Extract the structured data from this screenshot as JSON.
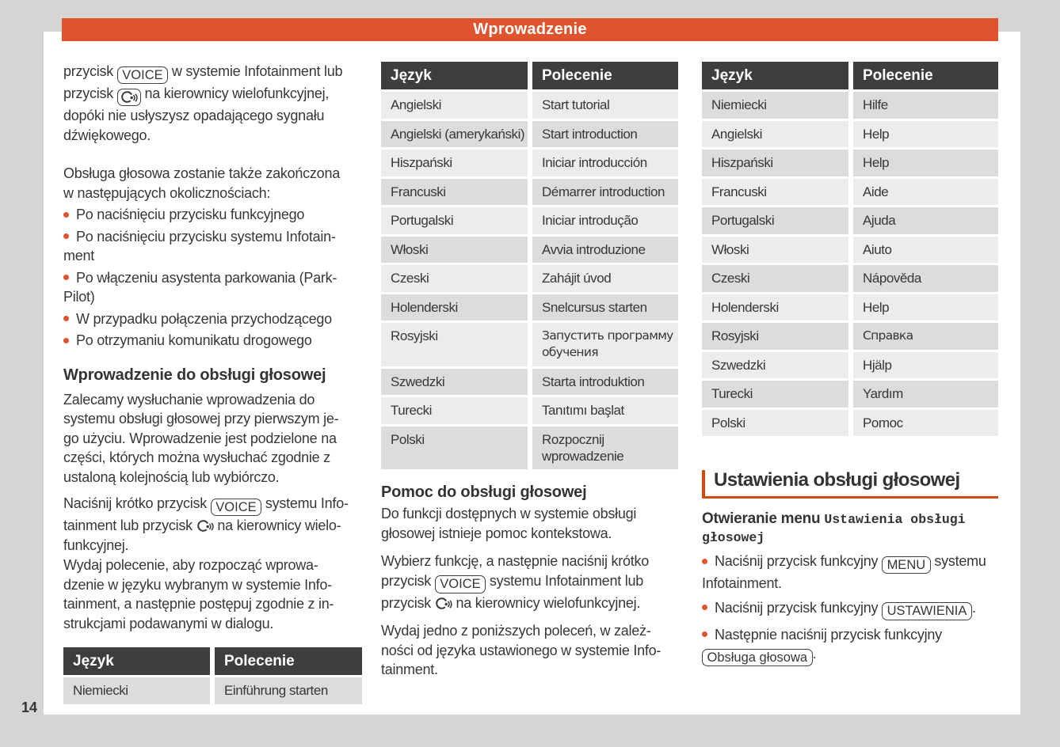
{
  "page_number": "14",
  "header": {
    "title": "Wprowadzenie"
  },
  "colors": {
    "accent_orange": "#e0542d",
    "section_rule_orange": "#cf4c12",
    "table_header_bg": "#3e3e3e",
    "row_light": "#ececec",
    "row_dark": "#dcdcdc",
    "page_background": "#d5d5d3",
    "text": "#373737"
  },
  "table_headers": [
    "Język",
    "Polecenie"
  ],
  "left_column": {
    "blocks": [
      {
        "type": "p",
        "name": "intro-paragraph",
        "cls": "first-para",
        "lines": [
          [
            "przycisk ",
            {
              "key": "VOICE"
            },
            " w systemie Infotainment lub"
          ],
          [
            "przycisk ",
            {
              "key_icon": "voice-control-icon"
            },
            " na kierownicy wielofunkcyjnej,"
          ],
          [
            "dopóki nie usłyszysz opadającego sygnału"
          ],
          [
            "dźwiękowego."
          ]
        ]
      },
      {
        "type": "p",
        "name": "end-conditions-paragraph",
        "cls": "tight",
        "lines": [
          [
            "Obsługa głosowa zostanie także zakończona"
          ],
          [
            "w następujących okolicznościach:"
          ]
        ]
      },
      {
        "type": "bullets",
        "name": "end-conditions-list",
        "items": [
          {
            "lines": [
              [
                "Po naciśnięciu przycisku funkcyjnego"
              ]
            ]
          },
          {
            "lines": [
              [
                "Po naciśnięciu przycisku systemu Infotain-"
              ],
              [
                "ment"
              ]
            ]
          },
          {
            "lines": [
              [
                "Po włączeniu asystenta parkowania (Park-"
              ],
              [
                "Pilot)"
              ]
            ]
          },
          {
            "lines": [
              [
                "W przypadku połączenia przychodzącego"
              ]
            ]
          },
          {
            "lines": [
              [
                "Po otrzymaniu komunikatu drogowego"
              ]
            ]
          }
        ]
      },
      {
        "type": "h3",
        "name": "intro-voice-heading",
        "text": "Wprowadzenie do obsługi głosowej"
      },
      {
        "type": "p",
        "name": "intro-voice-paragraph",
        "cls": "mb12",
        "lines": [
          [
            "Zalecamy wysłuchanie wprowadzenia do"
          ],
          [
            "systemu obsługi głosowej przy pierwszym je-"
          ],
          [
            "go użyciu. Wprowadzenie jest podzielone na"
          ],
          [
            "części, których można wysłuchać zgodnie z"
          ],
          [
            "ustaloną kolejnością lub wybiórczo."
          ]
        ]
      },
      {
        "type": "p",
        "name": "press-voice-paragraph",
        "cls": "mb1",
        "lines": [
          [
            "Naciśnij krótko przycisk ",
            {
              "key": "VOICE"
            },
            " systemu Info-"
          ],
          [
            "tainment lub przycisk ",
            {
              "icon": "voice-control-icon"
            },
            " na kierownicy wielo-"
          ],
          [
            "funkcyjnej."
          ]
        ]
      },
      {
        "type": "p",
        "name": "command-paragraph",
        "cls": "mb0",
        "lines": [
          [
            "Wydaj polecenie, aby rozpocząć wprowa-"
          ],
          [
            "dzenie w języku wybranym w systemie Info-"
          ],
          [
            "tainment, a następnie postępuj zgodnie z in-"
          ],
          [
            "strukcjami podawanymi w dialogu."
          ]
        ]
      },
      {
        "type": "table",
        "name": "german-intro-command-table",
        "cls": "left-table",
        "rows": [
          {
            "language": "Niemiecki",
            "command": "Einführung starten",
            "shade": "dark"
          }
        ]
      }
    ]
  },
  "middle_column": {
    "blocks": [
      {
        "type": "table",
        "name": "intro-command-table",
        "cls": "table-top",
        "rows": [
          {
            "language": "Angielski",
            "command": "Start tutorial",
            "shade": "light"
          },
          {
            "language": "Angielski (amerykański)",
            "command": "Start introduction",
            "shade": "dark"
          },
          {
            "language": "Hiszpański",
            "command": "Iniciar introducción",
            "shade": "light"
          },
          {
            "language": "Francuski",
            "command": "Démarrer introduction",
            "shade": "dark"
          },
          {
            "language": "Portugalski",
            "command": "Iniciar introdução",
            "shade": "light"
          },
          {
            "language": "Włoski",
            "command": "Avvia introduzione",
            "shade": "dark"
          },
          {
            "language": "Czeski",
            "command": "Zahájit úvod",
            "shade": "light"
          },
          {
            "language": "Holenderski",
            "command": "Snelcursus starten",
            "shade": "dark"
          },
          {
            "language": "Rosyjski",
            "command": "Запустить программу\nобучения",
            "shade": "light"
          },
          {
            "language": "Szwedzki",
            "command": "Starta introduktion",
            "shade": "dark"
          },
          {
            "language": "Turecki",
            "command": "Tanıtımı başlat",
            "shade": "light"
          },
          {
            "language": "Polski",
            "command": "Rozpocznij\nwprowadzenie",
            "shade": "dark"
          }
        ]
      },
      {
        "type": "h3",
        "name": "help-voice-heading",
        "text": "Pomoc do obsługi głosowej"
      },
      {
        "type": "p",
        "name": "help-paragraph",
        "lines": [
          [
            "Do funkcji dostępnych w systemie obsługi"
          ],
          [
            "głosowej istnieje pomoc kontekstowa."
          ]
        ]
      },
      {
        "type": "p",
        "name": "select-function-paragraph",
        "lines": [
          [
            "Wybierz funkcję, a następnie naciśnij krótko"
          ],
          [
            "przycisk ",
            {
              "key": "VOICE"
            },
            " systemu Infotainment lub"
          ],
          [
            "przycisk ",
            {
              "icon": "voice-control-icon"
            },
            " na kierownicy wielofunkcyjnej."
          ]
        ]
      },
      {
        "type": "p",
        "name": "say-command-paragraph",
        "lines": [
          [
            "Wydaj jedno z poniższych poleceń, w zależ-"
          ],
          [
            "ności od języka ustawionego w systemie Info-"
          ],
          [
            "tainment."
          ]
        ]
      }
    ]
  },
  "right_column": {
    "blocks": [
      {
        "type": "table",
        "name": "help-command-table",
        "cls": "table-top",
        "rows": [
          {
            "language": "Niemiecki",
            "command": "Hilfe",
            "shade": "dark"
          },
          {
            "language": "Angielski",
            "command": "Help",
            "shade": "light"
          },
          {
            "language": "Hiszpański",
            "command": "Help",
            "shade": "dark"
          },
          {
            "language": "Francuski",
            "command": "Aide",
            "shade": "light"
          },
          {
            "language": "Portugalski",
            "command": "Ajuda",
            "shade": "dark"
          },
          {
            "language": "Włoski",
            "command": "Aiuto",
            "shade": "light"
          },
          {
            "language": "Czeski",
            "command": "Nápověda",
            "shade": "dark"
          },
          {
            "language": "Holenderski",
            "command": "Help",
            "shade": "light"
          },
          {
            "language": "Rosyjski",
            "command": "Справка",
            "shade": "dark"
          },
          {
            "language": "Szwedzki",
            "command": "Hjälp",
            "shade": "light"
          },
          {
            "language": "Turecki",
            "command": "Yardım",
            "shade": "dark"
          },
          {
            "language": "Polski",
            "command": "Pomoc",
            "shade": "light"
          }
        ]
      },
      {
        "type": "section",
        "name": "voice-settings-heading",
        "text": "Ustawienia obsługi głosowej"
      },
      {
        "type": "h4",
        "name": "open-menu-heading",
        "lines": [
          [
            "Otwieranie menu ",
            {
              "menu": "Ustawienia obsługi"
            }
          ],
          [
            {
              "menu": "głosowej"
            }
          ]
        ]
      },
      {
        "type": "bullets",
        "name": "settings-steps-list",
        "items": [
          {
            "lines": [
              [
                "Naciśnij przycisk funkcyjny ",
                {
                  "key": "MENU"
                },
                " systemu"
              ],
              [
                "Infotainment."
              ]
            ]
          },
          {
            "lines": [
              [
                "Naciśnij przycisk funkcyjny ",
                {
                  "key": "USTAWIENIA"
                },
                "."
              ]
            ]
          },
          {
            "lines": [
              [
                "Następnie naciśnij przycisk funkcyjny"
              ],
              [
                {
                  "key": "Obsługa głosowa"
                },
                "."
              ]
            ]
          }
        ]
      }
    ]
  }
}
